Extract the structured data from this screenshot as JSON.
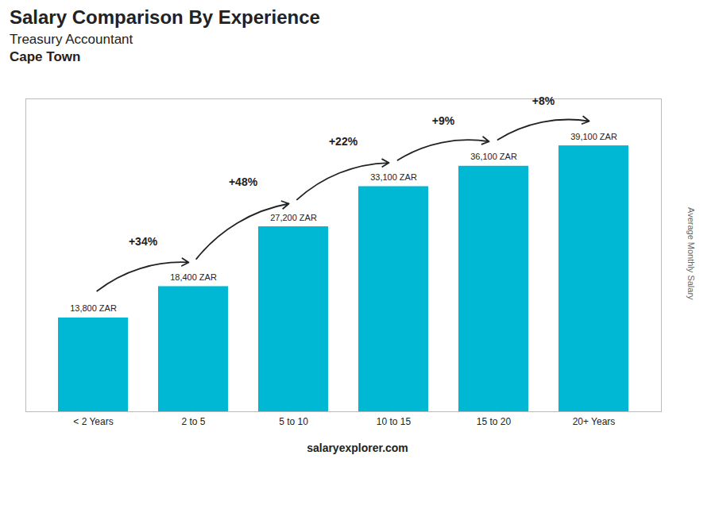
{
  "chart_data": {
    "type": "bar",
    "title": "Salary Comparison By Experience",
    "subtitle": [
      "Treasury Accountant",
      "Cape Town"
    ],
    "ylabel": "Average Monthly Salary",
    "caption": [
      "salary",
      "explorer.com"
    ],
    "categories": [
      "< 2 Years",
      "2 to 5",
      "5 to 10",
      "10 to 15",
      "15 to 20",
      "20+ Years"
    ],
    "values": [
      13800,
      18400,
      27200,
      33100,
      36100,
      39100
    ],
    "value_labels": [
      "13,800 ZAR",
      "18,400 ZAR",
      "27,200 ZAR",
      "33,100 ZAR",
      "36,100 ZAR",
      "39,100 ZAR"
    ],
    "data_labels": true,
    "annotations": [
      "+34%",
      "+48%",
      "+22%",
      "+9%",
      "+8%"
    ],
    "color": "#00b8d4",
    "ylim": [
      0,
      46000
    ],
    "tick_labels": "x",
    "grid": false
  }
}
